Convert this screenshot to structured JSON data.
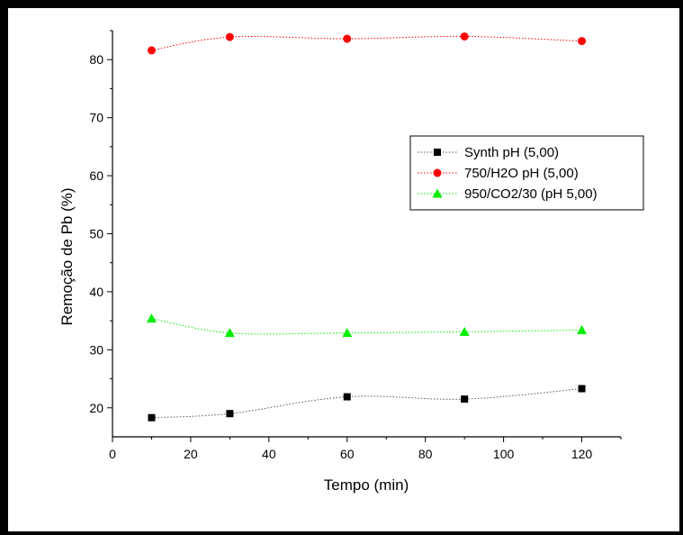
{
  "chart_data": {
    "type": "line",
    "xlabel": "Tempo (min)",
    "ylabel": "Remoção de Pb (%)",
    "xlim": [
      0,
      130
    ],
    "ylim": [
      15,
      85
    ],
    "xticks": [
      0,
      20,
      40,
      60,
      80,
      100,
      120
    ],
    "yticks": [
      20,
      30,
      40,
      50,
      60,
      70,
      80
    ],
    "grid": false,
    "legend_position": "top-right",
    "x": [
      10,
      30,
      60,
      90,
      120
    ],
    "series": [
      {
        "name": "Synth pH (5,00)",
        "marker": "square",
        "color": "#000000",
        "line_color": "#555555",
        "values": [
          18.3,
          19.0,
          21.9,
          21.5,
          23.3
        ]
      },
      {
        "name": "750/H2O pH (5,00)",
        "marker": "circle",
        "color": "#ff0000",
        "line_color": "#ff0000",
        "values": [
          81.6,
          83.9,
          83.6,
          84.0,
          83.2
        ]
      },
      {
        "name": "950/CO2/30 (pH 5,00)",
        "marker": "triangle",
        "color": "#00ee00",
        "line_color": "#00ee00",
        "values": [
          35.4,
          32.9,
          32.9,
          33.1,
          33.4
        ]
      }
    ]
  }
}
